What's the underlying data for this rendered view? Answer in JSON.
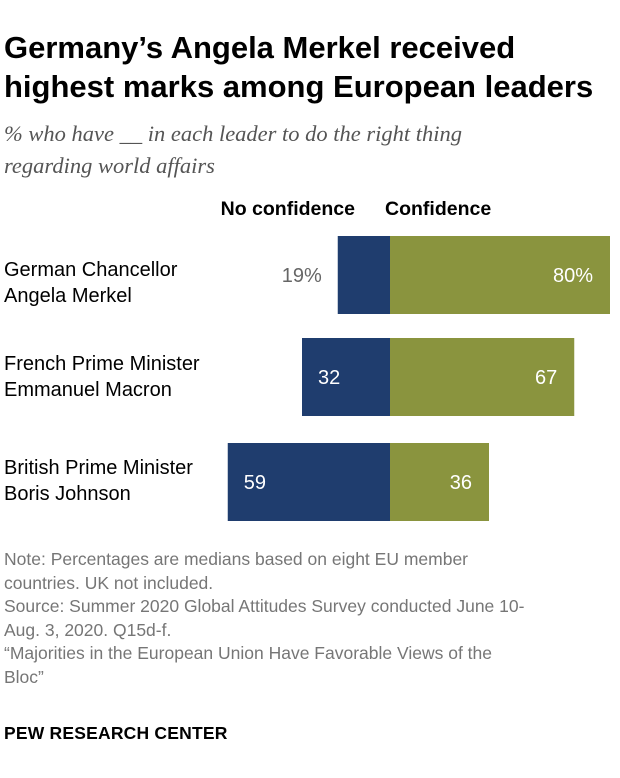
{
  "title_line1": "Germany’s Angela Merkel received",
  "title_line2": "highest marks among European leaders",
  "subtitle_line1": "% who have __ in each leader to do the right thing",
  "subtitle_line2": "regarding world affairs",
  "colors": {
    "no_confidence": "#1f3d6e",
    "confidence": "#8a943e",
    "label_dark": "#666666",
    "label_light": "#ffffff"
  },
  "chart_data": {
    "type": "bar",
    "orientation": "horizontal-diverging",
    "categories": [
      [
        "German Chancellor",
        "Angela Merkel"
      ],
      [
        "French Prime Minister",
        "Emmanuel Macron"
      ],
      [
        "British Prime Minister",
        "Boris Johnson"
      ]
    ],
    "series": [
      {
        "name": "No confidence",
        "values": [
          19,
          32,
          59
        ],
        "labels": [
          "19%",
          "32",
          "59"
        ]
      },
      {
        "name": "Confidence",
        "values": [
          80,
          67,
          36
        ],
        "labels": [
          "80%",
          "67",
          "36"
        ]
      }
    ]
  },
  "notes": [
    "Note: Percentages are medians based on eight EU member",
    "countries. UK not included.",
    "Source: Summer 2020 Global Attitudes Survey conducted June 10-",
    "Aug. 3, 2020. Q15d-f.",
    "“Majorities in the European Union Have Favorable Views of the",
    "Bloc”"
  ],
  "brand": "PEW RESEARCH CENTER"
}
